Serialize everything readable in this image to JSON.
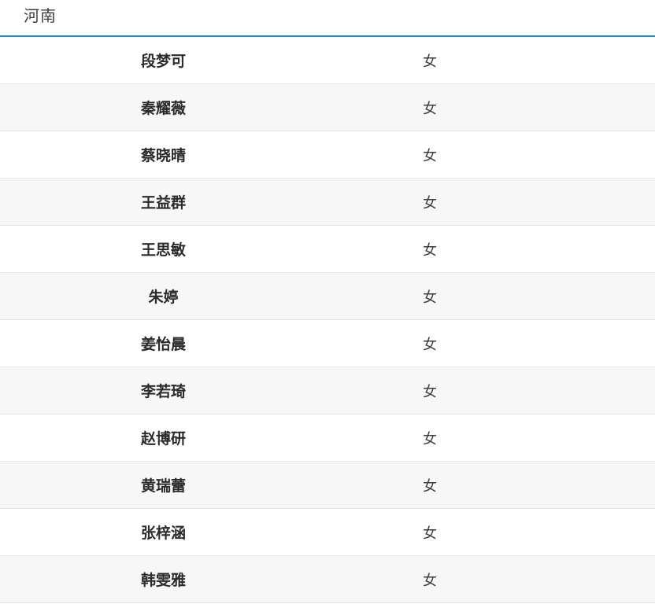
{
  "header": {
    "title": "河南"
  },
  "table": {
    "rows": [
      {
        "name": "段梦可",
        "gender": "女"
      },
      {
        "name": "秦耀薇",
        "gender": "女"
      },
      {
        "name": "蔡晓晴",
        "gender": "女"
      },
      {
        "name": "王益群",
        "gender": "女"
      },
      {
        "name": "王思敏",
        "gender": "女"
      },
      {
        "name": "朱婷",
        "gender": "女"
      },
      {
        "name": "姜怡晨",
        "gender": "女"
      },
      {
        "name": "李若琦",
        "gender": "女"
      },
      {
        "name": "赵博研",
        "gender": "女"
      },
      {
        "name": "黄瑞蕾",
        "gender": "女"
      },
      {
        "name": "张梓涵",
        "gender": "女"
      },
      {
        "name": "韩雯雅",
        "gender": "女"
      }
    ]
  },
  "colors": {
    "accent": "#1e8cbe",
    "row_border": "#e4e4ee",
    "row_alt_bg": "#f7f7f7",
    "name_color": "#2b2b2b",
    "text_color": "#3c3c3c"
  }
}
